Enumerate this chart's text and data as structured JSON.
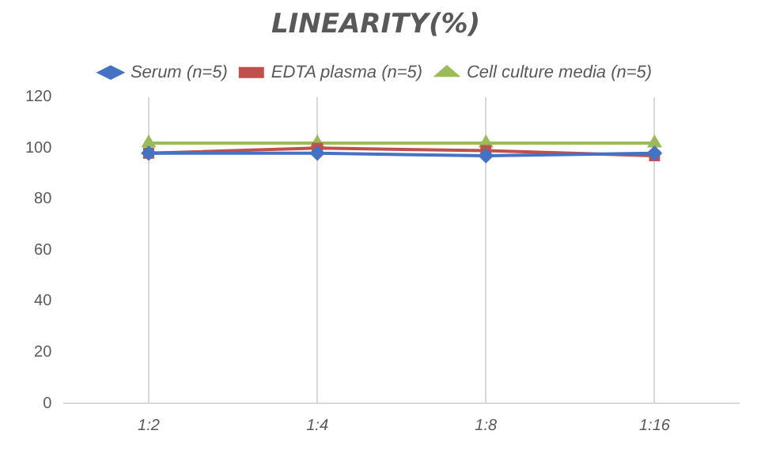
{
  "chart_data": {
    "type": "line",
    "title": "LINEARITY(%)",
    "categories": [
      "1:2",
      "1:4",
      "1:8",
      "1:16"
    ],
    "series": [
      {
        "name": "Serum (n=5)",
        "color": "#4472c4",
        "marker": "diamond",
        "values": [
          98,
          98,
          97,
          98
        ]
      },
      {
        "name": "EDTA plasma (n=5)",
        "color": "#c0504d",
        "marker": "square",
        "values": [
          98,
          100,
          99,
          97
        ]
      },
      {
        "name": "Cell culture media (n=5)",
        "color": "#9bbb59",
        "marker": "triangle",
        "values": [
          102,
          102,
          102,
          102
        ]
      }
    ],
    "ylim": [
      0,
      120
    ],
    "yticks": [
      0,
      20,
      40,
      60,
      80,
      100,
      120
    ],
    "grid": "x",
    "legend": "top"
  }
}
